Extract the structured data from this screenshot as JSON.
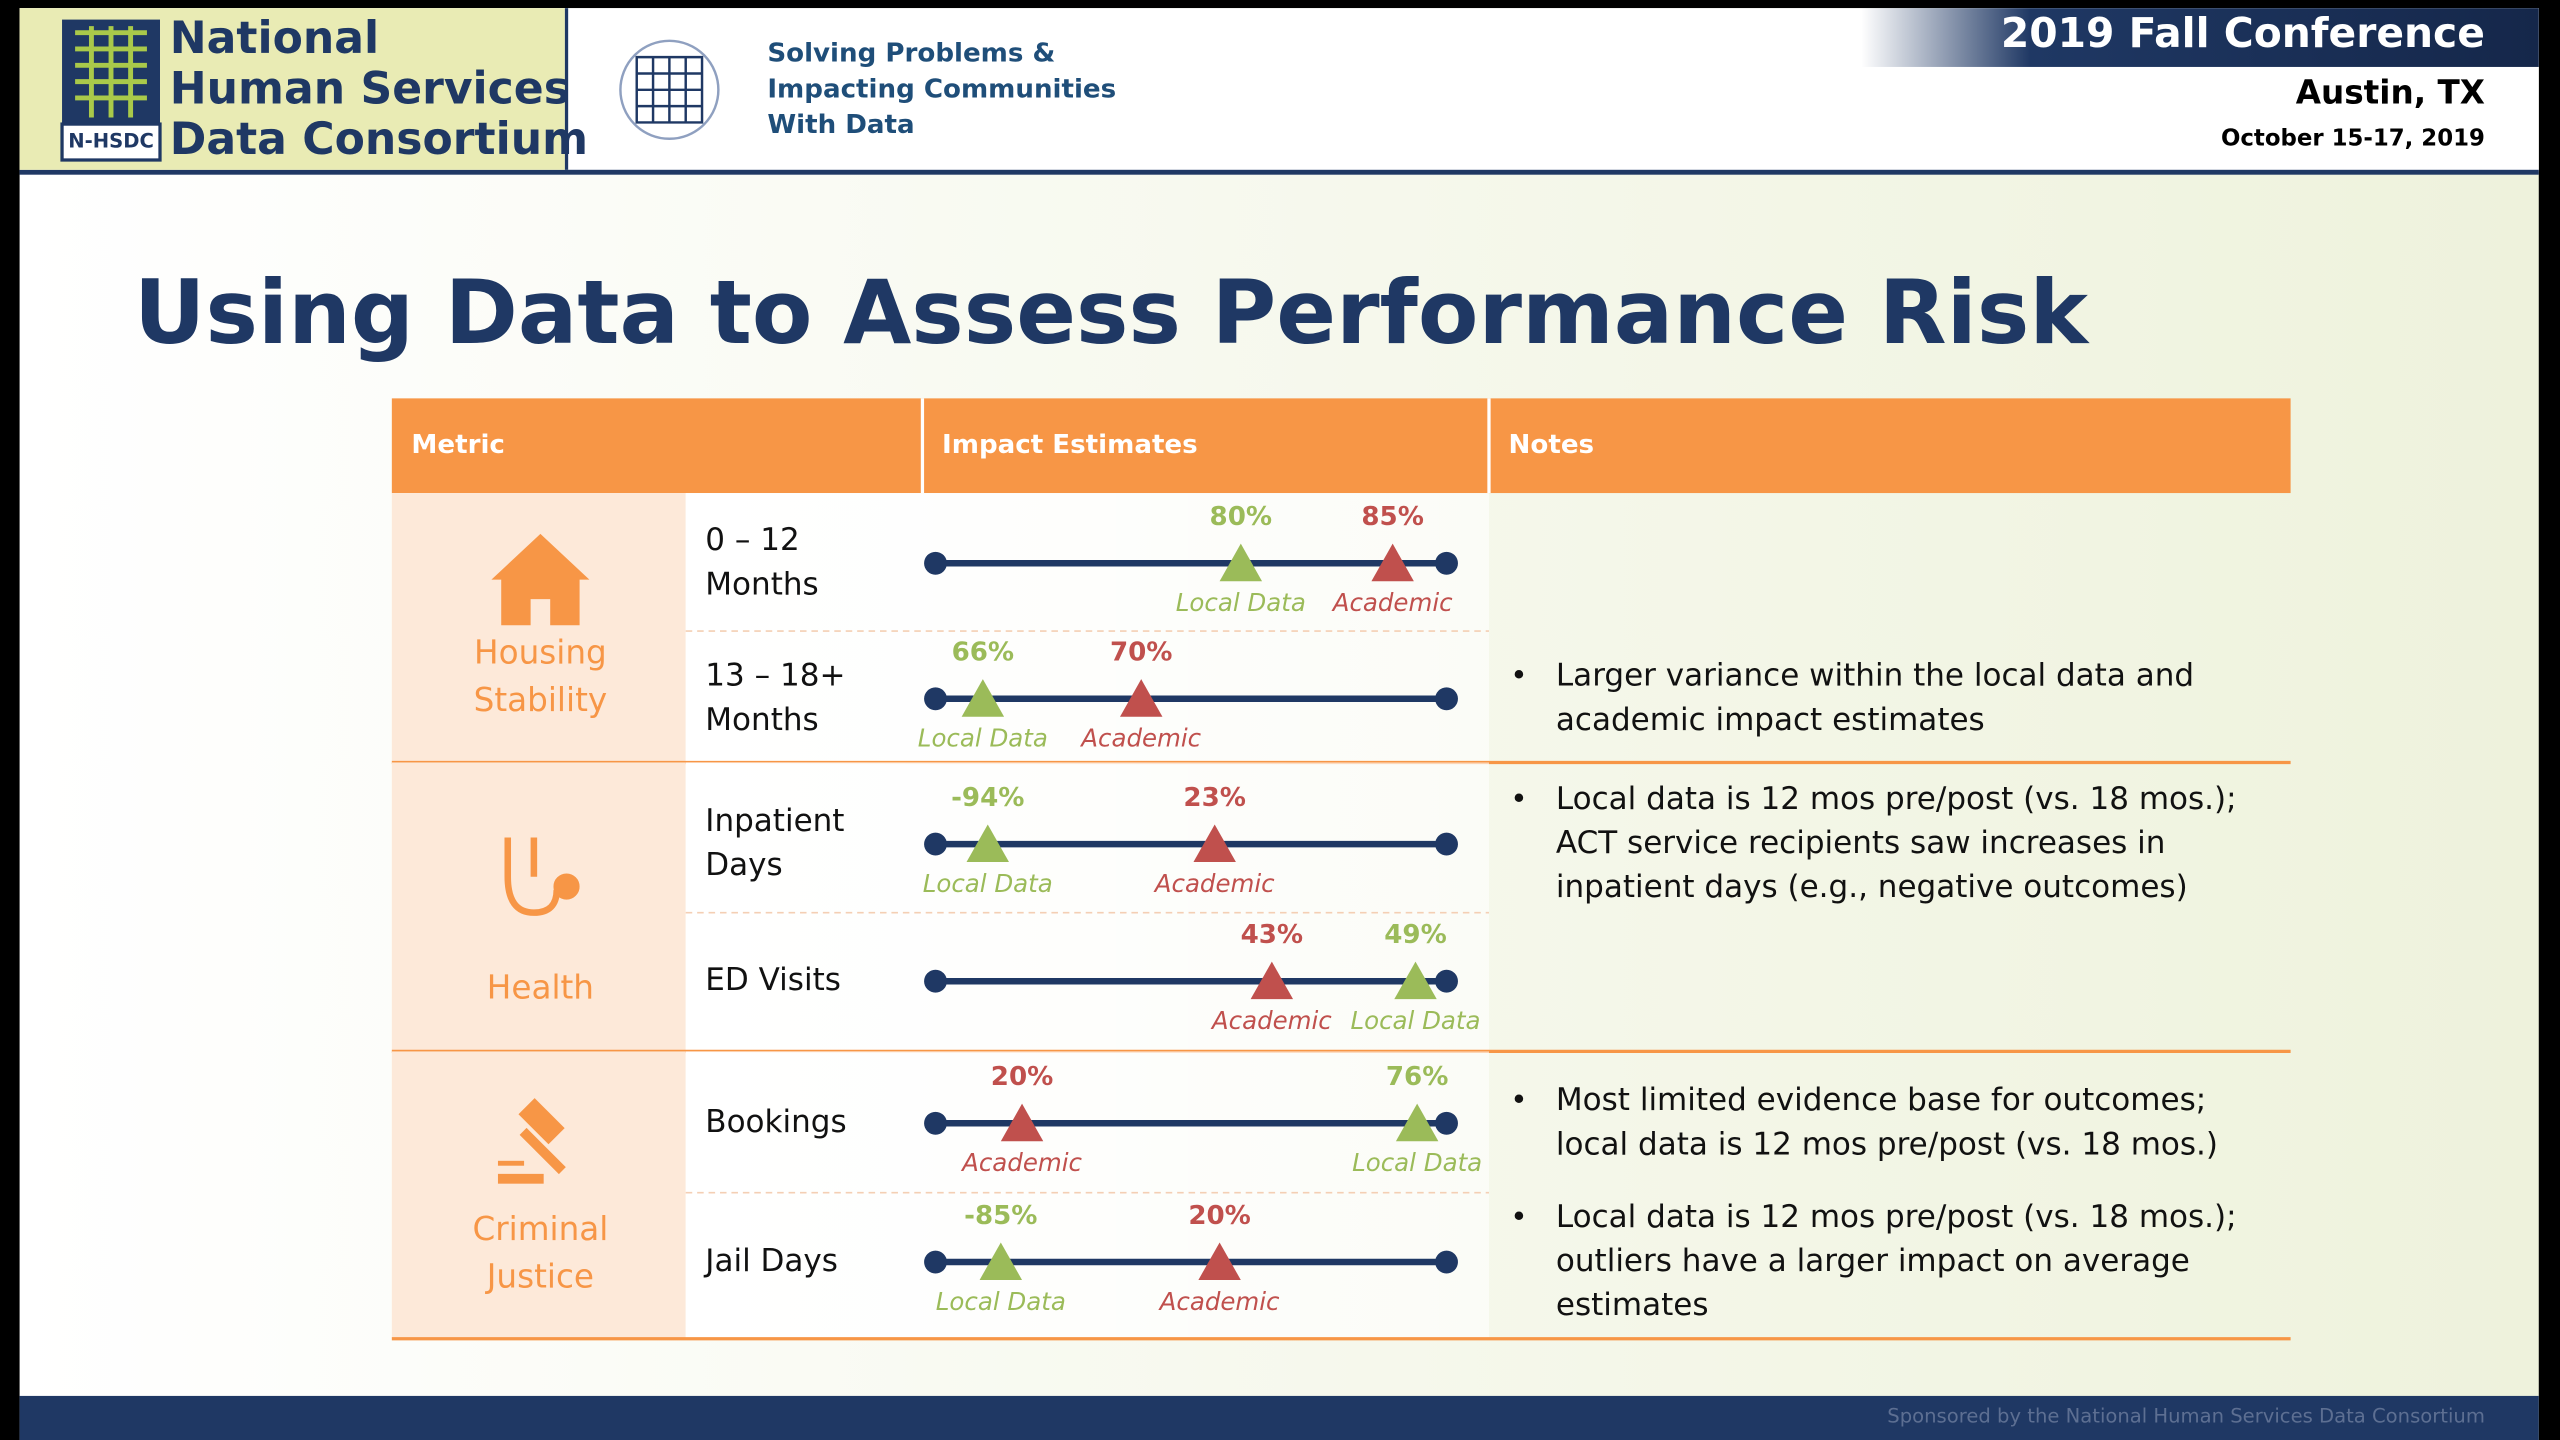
{
  "header": {
    "org_name": [
      "National",
      "Human Services",
      "Data Consortium"
    ],
    "logo_abbr": "N-HSDC",
    "tagline": [
      "Solving Problems &",
      "Impacting Communities",
      "With Data"
    ],
    "conference": "2019 Fall Conference",
    "location": "Austin, TX",
    "dates": "October 15-17, 2019"
  },
  "title": "Using Data to Assess Performance Risk",
  "table": {
    "headers": [
      "Metric",
      "Impact Estimates",
      "Notes"
    ],
    "groups": [
      {
        "name": [
          "Housing",
          "Stability"
        ],
        "icon": "house",
        "rows": [
          {
            "label": [
              "0 – 12",
              "Months"
            ],
            "markers": [
              {
                "value": "80%",
                "legend": "Local Data",
                "color": "#9bbb59"
              },
              {
                "value": "85%",
                "legend": "Academic",
                "color": "#c0504d"
              }
            ]
          },
          {
            "label": [
              "13 – 18+",
              "Months"
            ],
            "markers": [
              {
                "value": "66%",
                "legend": "Local Data",
                "color": "#9bbb59"
              },
              {
                "value": "70%",
                "legend": "Academic",
                "color": "#c0504d"
              }
            ],
            "note": [
              "Larger variance within the local data and",
              "academic impact estimates"
            ]
          }
        ]
      },
      {
        "name": [
          "Health"
        ],
        "icon": "stethoscope",
        "rows": [
          {
            "label": [
              "Inpatient",
              "Days"
            ],
            "markers": [
              {
                "value": "-94%",
                "legend": "Local Data",
                "color": "#9bbb59"
              },
              {
                "value": "23%",
                "legend": "Academic",
                "color": "#c0504d"
              }
            ],
            "note": [
              "Local data is 12 mos pre/post (vs. 18 mos.);",
              "ACT service recipients saw increases in",
              "inpatient days (e.g., negative outcomes)"
            ]
          },
          {
            "label": [
              "ED Visits"
            ],
            "markers": [
              {
                "value": "43%",
                "legend": "Academic",
                "color": "#c0504d"
              },
              {
                "value": "49%",
                "legend": "Local Data",
                "color": "#9bbb59"
              }
            ]
          }
        ]
      },
      {
        "name": [
          "Criminal",
          "Justice"
        ],
        "icon": "gavel",
        "rows": [
          {
            "label": [
              "Bookings"
            ],
            "markers": [
              {
                "value": "20%",
                "legend": "Academic",
                "color": "#c0504d"
              },
              {
                "value": "76%",
                "legend": "Local Data",
                "color": "#9bbb59"
              }
            ],
            "note": [
              "Most limited evidence base for outcomes;",
              "local data is 12 mos pre/post (vs. 18 mos.)"
            ]
          },
          {
            "label": [
              "Jail Days"
            ],
            "markers": [
              {
                "value": "-85%",
                "legend": "Local Data",
                "color": "#9bbb59"
              },
              {
                "value": "20%",
                "legend": "Academic",
                "color": "#c0504d"
              }
            ],
            "note": [
              "Local data is 12 mos pre/post (vs. 18 mos.);",
              "outliers have a larger impact on average",
              "estimates"
            ]
          }
        ]
      }
    ]
  },
  "footer": "Sponsored by the National Human Services Data Consortium"
}
